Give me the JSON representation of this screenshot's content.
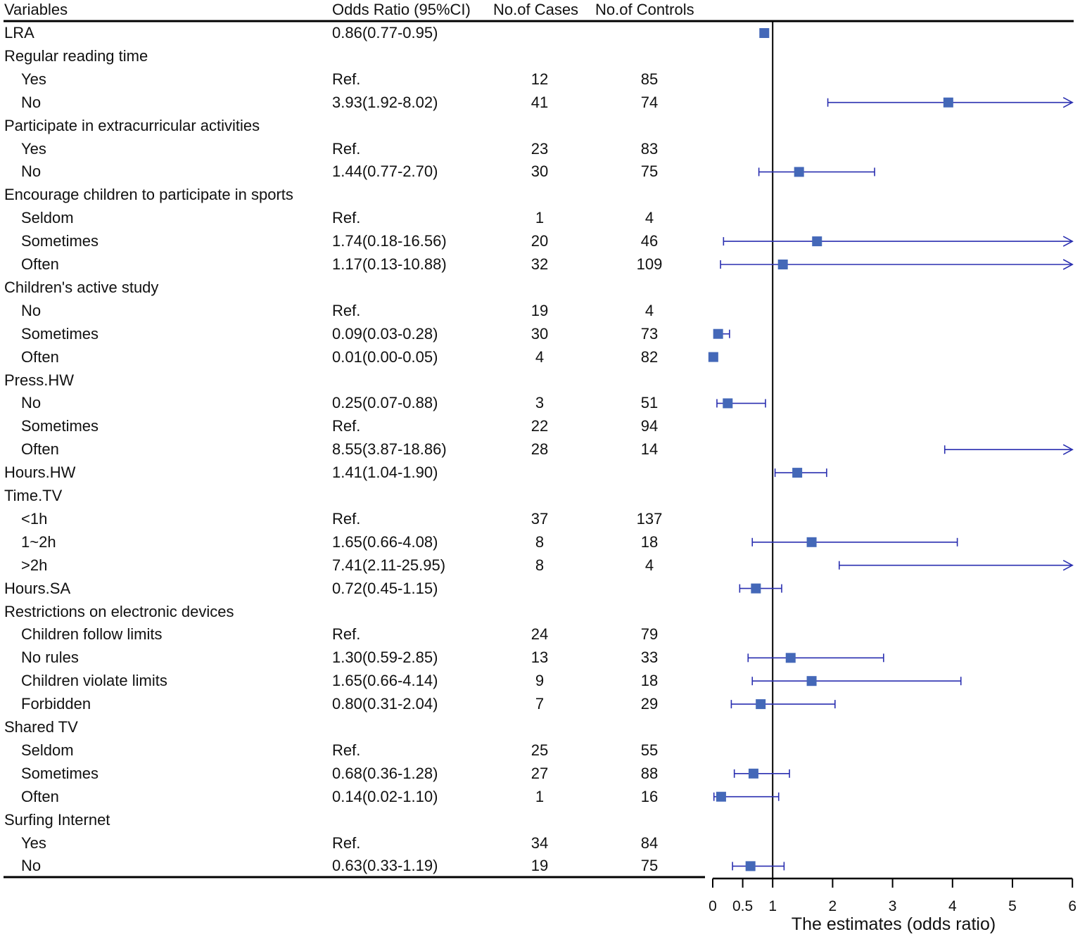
{
  "header": {
    "variables": "Variables",
    "odds_ratio": "Odds Ratio (95%CI)",
    "cases": "No.of Cases",
    "controls": "No.of Controls"
  },
  "chart_data": {
    "type": "forest",
    "xlabel": "The estimates (odds ratio)",
    "xlim": [
      0,
      6
    ],
    "xticks": [
      0,
      0.5,
      1,
      2,
      3,
      4,
      5,
      6
    ],
    "xtick_labels": [
      "0",
      "0.5",
      "1",
      "2",
      "3",
      "4",
      "5",
      "6"
    ],
    "reference_line": 1,
    "colors": {
      "marker": "#4468b8",
      "ci": "#2a2fb0"
    },
    "rows": [
      {
        "label": "LRA",
        "type": "header",
        "or_text": "0.86(0.77-0.95)",
        "or": 0.86,
        "lo": 0.77,
        "hi": 0.95
      },
      {
        "label": "Regular reading time",
        "type": "header"
      },
      {
        "label": "Yes",
        "type": "item",
        "or_text": "Ref.",
        "cases": "12",
        "controls": "85"
      },
      {
        "label": "No",
        "type": "item",
        "or_text": "3.93(1.92-8.02)",
        "cases": "41",
        "controls": "74",
        "or": 3.93,
        "lo": 1.92,
        "hi": 8.02
      },
      {
        "label": "Participate in extracurricular activities",
        "type": "header"
      },
      {
        "label": "Yes",
        "type": "item",
        "or_text": "Ref.",
        "cases": "23",
        "controls": "83"
      },
      {
        "label": "No",
        "type": "item",
        "or_text": "1.44(0.77-2.70)",
        "cases": "30",
        "controls": "75",
        "or": 1.44,
        "lo": 0.77,
        "hi": 2.7
      },
      {
        "label": "Encourage children to participate in sports",
        "type": "header"
      },
      {
        "label": "Seldom",
        "type": "item",
        "or_text": "Ref.",
        "cases": "1",
        "controls": "4"
      },
      {
        "label": "Sometimes",
        "type": "item",
        "or_text": "1.74(0.18-16.56)",
        "cases": "20",
        "controls": "46",
        "or": 1.74,
        "lo": 0.18,
        "hi": 16.56
      },
      {
        "label": "Often",
        "type": "item",
        "or_text": "1.17(0.13-10.88)",
        "cases": "32",
        "controls": "109",
        "or": 1.17,
        "lo": 0.13,
        "hi": 10.88
      },
      {
        "label": "Children's active study",
        "type": "header"
      },
      {
        "label": "No",
        "type": "item",
        "or_text": "Ref.",
        "cases": "19",
        "controls": "4"
      },
      {
        "label": "Sometimes",
        "type": "item",
        "or_text": "0.09(0.03-0.28)",
        "cases": "30",
        "controls": "73",
        "or": 0.09,
        "lo": 0.03,
        "hi": 0.28
      },
      {
        "label": "Often",
        "type": "item",
        "or_text": "0.01(0.00-0.05)",
        "cases": "4",
        "controls": "82",
        "or": 0.01,
        "lo": 0.0,
        "hi": 0.05
      },
      {
        "label": "Press.HW",
        "type": "header"
      },
      {
        "label": "No",
        "type": "item",
        "or_text": "0.25(0.07-0.88)",
        "cases": "3",
        "controls": "51",
        "or": 0.25,
        "lo": 0.07,
        "hi": 0.88
      },
      {
        "label": "Sometimes",
        "type": "item",
        "or_text": "Ref.",
        "cases": "22",
        "controls": "94"
      },
      {
        "label": "Often",
        "type": "item",
        "or_text": "8.55(3.87-18.86)",
        "cases": "28",
        "controls": "14",
        "or": 8.55,
        "lo": 3.87,
        "hi": 18.86
      },
      {
        "label": "Hours.HW",
        "type": "header",
        "or_text": "1.41(1.04-1.90)",
        "or": 1.41,
        "lo": 1.04,
        "hi": 1.9
      },
      {
        "label": "Time.TV",
        "type": "header"
      },
      {
        "label": "<1h",
        "type": "item",
        "or_text": "Ref.",
        "cases": "37",
        "controls": "137"
      },
      {
        "label": "1~2h",
        "type": "item",
        "or_text": "1.65(0.66-4.08)",
        "cases": "8",
        "controls": "18",
        "or": 1.65,
        "lo": 0.66,
        "hi": 4.08
      },
      {
        "label": ">2h",
        "type": "item",
        "or_text": "7.41(2.11-25.95)",
        "cases": "8",
        "controls": "4",
        "or": 7.41,
        "lo": 2.11,
        "hi": 25.95
      },
      {
        "label": "Hours.SA",
        "type": "header",
        "or_text": "0.72(0.45-1.15)",
        "or": 0.72,
        "lo": 0.45,
        "hi": 1.15
      },
      {
        "label": "Restrictions on electronic devices",
        "type": "header"
      },
      {
        "label": "Children follow limits",
        "type": "item",
        "or_text": "Ref.",
        "cases": "24",
        "controls": "79"
      },
      {
        "label": "No rules",
        "type": "item",
        "or_text": "1.30(0.59-2.85)",
        "cases": "13",
        "controls": "33",
        "or": 1.3,
        "lo": 0.59,
        "hi": 2.85
      },
      {
        "label": "Children violate limits",
        "type": "item",
        "or_text": "1.65(0.66-4.14)",
        "cases": "9",
        "controls": "18",
        "or": 1.65,
        "lo": 0.66,
        "hi": 4.14
      },
      {
        "label": "Forbidden",
        "type": "item",
        "or_text": "0.80(0.31-2.04)",
        "cases": "7",
        "controls": "29",
        "or": 0.8,
        "lo": 0.31,
        "hi": 2.04
      },
      {
        "label": "Shared TV",
        "type": "header"
      },
      {
        "label": "Seldom",
        "type": "item",
        "or_text": "Ref.",
        "cases": "25",
        "controls": "55"
      },
      {
        "label": "Sometimes",
        "type": "item",
        "or_text": "0.68(0.36-1.28)",
        "cases": "27",
        "controls": "88",
        "or": 0.68,
        "lo": 0.36,
        "hi": 1.28
      },
      {
        "label": "Often",
        "type": "item",
        "or_text": "0.14(0.02-1.10)",
        "cases": "1",
        "controls": "16",
        "or": 0.14,
        "lo": 0.02,
        "hi": 1.1
      },
      {
        "label": "Surfing Internet",
        "type": "header"
      },
      {
        "label": "Yes",
        "type": "item",
        "or_text": "Ref.",
        "cases": "34",
        "controls": "84"
      },
      {
        "label": "No",
        "type": "item",
        "or_text": "0.63(0.33-1.19)",
        "cases": "19",
        "controls": "75",
        "or": 0.63,
        "lo": 0.33,
        "hi": 1.19
      }
    ]
  }
}
